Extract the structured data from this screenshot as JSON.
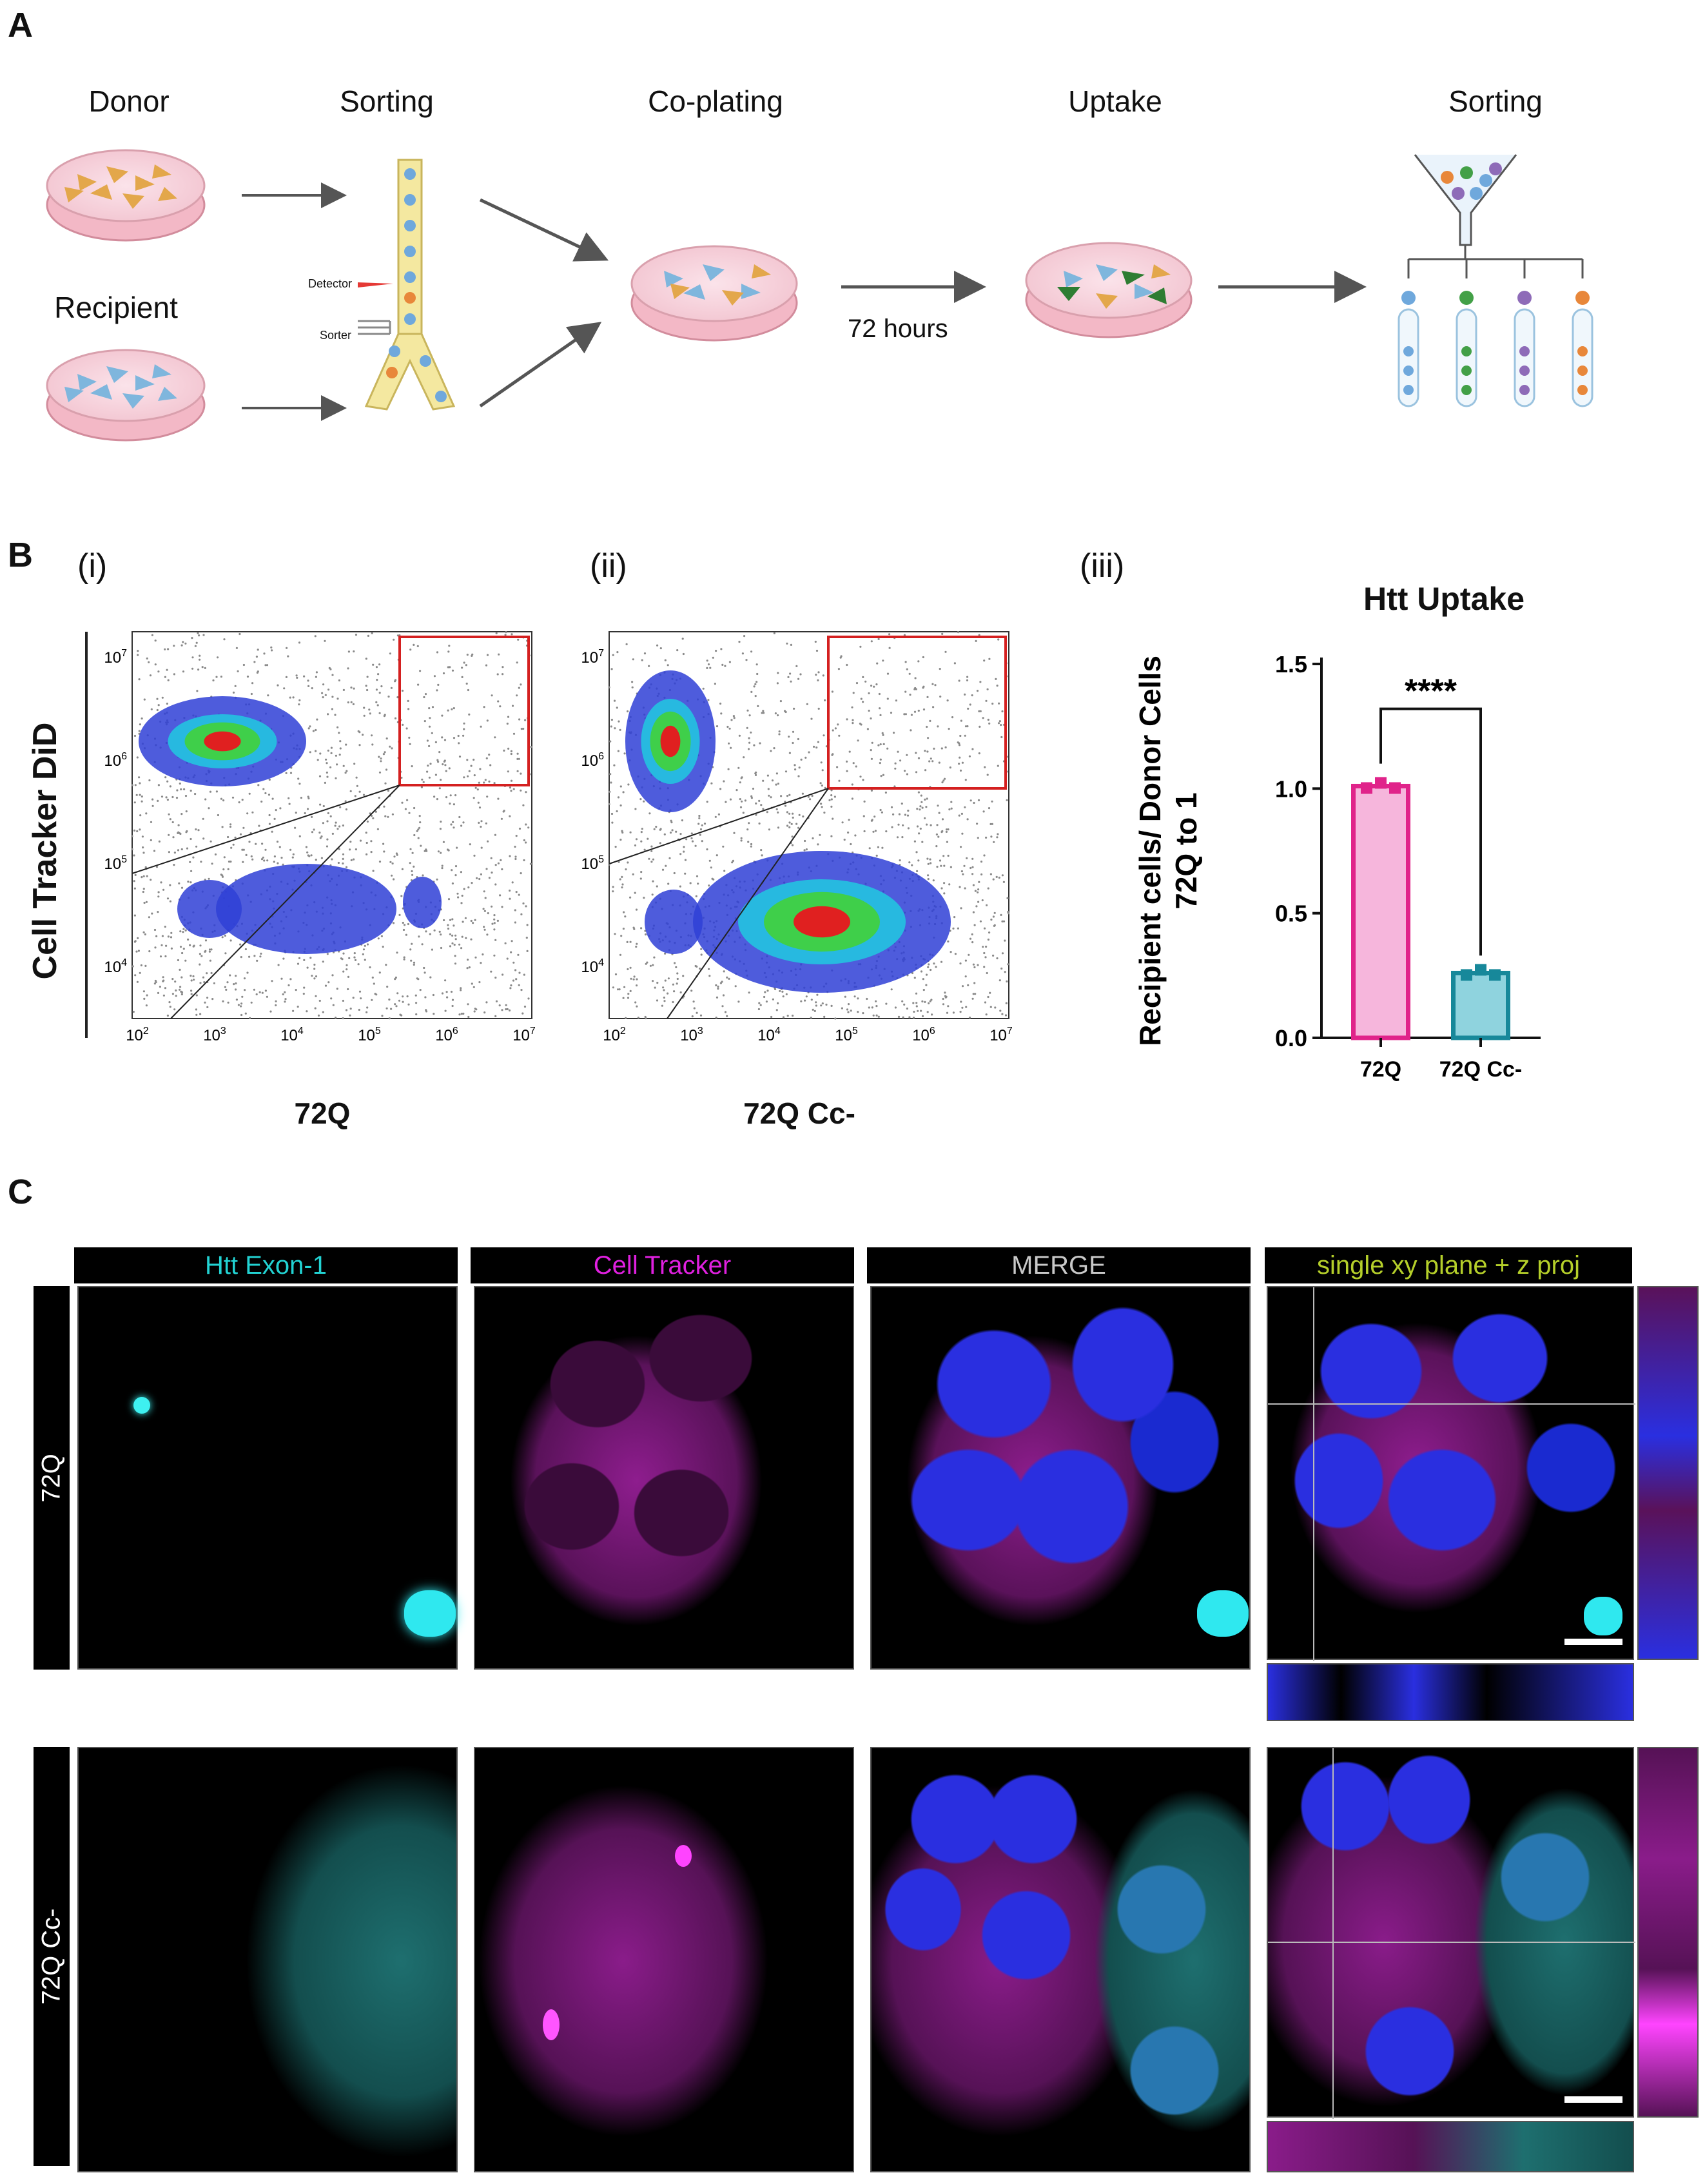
{
  "panelA": {
    "label": "A",
    "steps": {
      "donor": "Donor",
      "recipient": "Recipient",
      "sorting1": "Sorting",
      "coplating": "Co-plating",
      "uptake": "Uptake",
      "sorting2": "Sorting",
      "hours": "72 hours",
      "detector": "Detector",
      "sorter": "Sorter"
    }
  },
  "panelB": {
    "label": "B",
    "sub_i": "(i)",
    "sub_ii": "(ii)",
    "sub_iii": "(iii)",
    "flow_ylabel": "Cell Tracker DiD",
    "flow1_xlabel": "72Q",
    "flow2_xlabel": "72Q Cc-",
    "yticks": [
      "10^7",
      "10^6",
      "10^5",
      "10^4"
    ],
    "xticks": [
      "10^2",
      "10^3",
      "10^4",
      "10^5",
      "10^6",
      "10^7"
    ]
  },
  "chart_data": {
    "type": "bar",
    "title": "Htt Uptake",
    "ylabel": "Recipient cells/ Donor Cells 72Q to 1",
    "categories": [
      "72Q",
      "72Q Cc-"
    ],
    "values": [
      1.01,
      0.26
    ],
    "ylim": [
      0,
      1.5
    ],
    "yticks": [
      "0.0",
      "0.5",
      "1.0",
      "1.5"
    ],
    "significance": "****",
    "colors": {
      "fill": [
        "#f6b6dc",
        "#8fd3de"
      ],
      "edge": [
        "#e0238a",
        "#17889a"
      ]
    }
  },
  "panelC": {
    "label": "C",
    "headers": [
      {
        "text": "Htt Exon-1",
        "color": "#22d3d3"
      },
      {
        "text": "Cell Tracker",
        "color": "#e020e0"
      },
      {
        "text": "MERGE",
        "color": "#c8c8c8"
      },
      {
        "text": "single xy plane + z proj",
        "color": "#b5cf2a"
      }
    ],
    "rows": [
      "72Q",
      "72Q Cc-"
    ]
  }
}
